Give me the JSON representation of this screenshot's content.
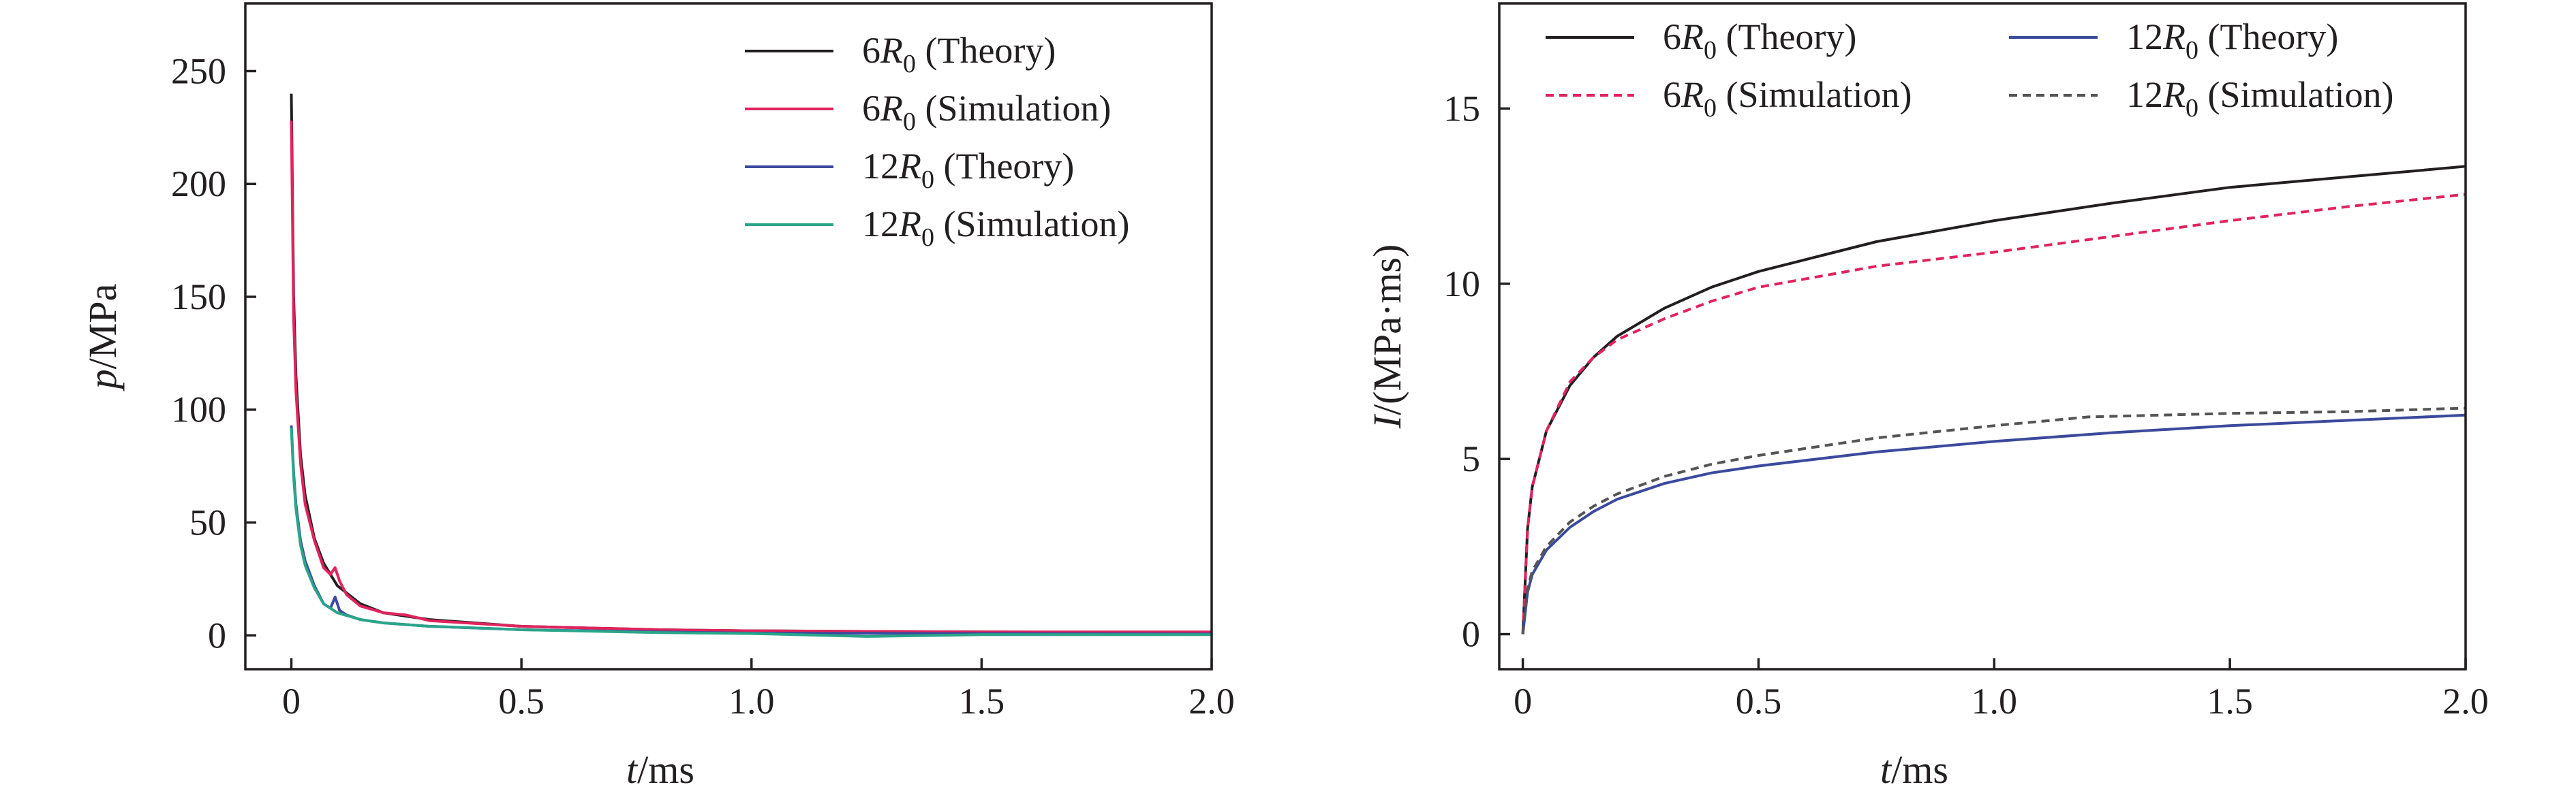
{
  "chart_data": [
    {
      "type": "line",
      "title": "",
      "xlabel": {
        "var": "t",
        "unit": "/ms"
      },
      "ylabel": {
        "var": "p",
        "unit": "/MPa"
      },
      "xlim": [
        -0.1,
        2.0
      ],
      "ylim": [
        -15,
        280
      ],
      "x_ticks": [
        0,
        0.5,
        1.0,
        1.5,
        2.0
      ],
      "x_tick_labels": [
        "0",
        "0.5",
        "1.0",
        "1.5",
        "2.0"
      ],
      "y_ticks": [
        0,
        50,
        100,
        150,
        200,
        250
      ],
      "y_tick_labels": [
        "0",
        "50",
        "100",
        "150",
        "200",
        "250"
      ],
      "grid": false,
      "legend_position": "top-right",
      "series": [
        {
          "name": "6R0 (Theory)",
          "legend": {
            "pre": "6",
            "var": "R",
            "sub": "0",
            "post": " (Theory)"
          },
          "color": "#231f20",
          "dash": "solid",
          "x": [
            0,
            0.005,
            0.01,
            0.02,
            0.03,
            0.05,
            0.07,
            0.1,
            0.15,
            0.2,
            0.3,
            0.5,
            0.8,
            1.0,
            1.5,
            2.0
          ],
          "y": [
            240,
            150,
            115,
            80,
            62,
            43,
            32,
            22,
            14,
            10,
            7,
            4,
            2.5,
            2,
            1.5,
            1.2
          ]
        },
        {
          "name": "6R0 (Simulation)",
          "legend": {
            "pre": "6",
            "var": "R",
            "sub": "0",
            "post": " (Simulation)"
          },
          "color": "#e0245e",
          "dash": "solid",
          "x": [
            0,
            0.005,
            0.01,
            0.02,
            0.03,
            0.05,
            0.07,
            0.085,
            0.095,
            0.105,
            0.12,
            0.15,
            0.2,
            0.25,
            0.3,
            0.5,
            0.8,
            1.0,
            1.5,
            2.0
          ],
          "y": [
            228,
            140,
            108,
            76,
            58,
            42,
            30,
            27,
            30,
            24,
            18,
            13,
            10,
            9,
            6.5,
            4,
            2.5,
            2,
            1.5,
            1.5
          ]
        },
        {
          "name": "12R0 (Theory)",
          "legend": {
            "pre": "12",
            "var": "R",
            "sub": "0",
            "post": " (Theory)"
          },
          "color": "#3b4a9c",
          "dash": "solid",
          "x": [
            0,
            0.005,
            0.01,
            0.02,
            0.03,
            0.05,
            0.07,
            0.085,
            0.095,
            0.105,
            0.12,
            0.15,
            0.2,
            0.3,
            0.5,
            0.8,
            1.0,
            1.5,
            2.0
          ],
          "y": [
            93,
            72,
            58,
            42,
            33,
            22,
            14,
            12,
            17,
            11,
            9,
            7,
            5.5,
            4,
            2.5,
            1.5,
            1,
            0.8,
            0.6
          ]
        },
        {
          "name": "12R0 (Simulation)",
          "legend": {
            "pre": "12",
            "var": "R",
            "sub": "0",
            "post": " (Simulation)"
          },
          "color": "#2aa58a",
          "dash": "solid",
          "x": [
            0,
            0.005,
            0.01,
            0.02,
            0.03,
            0.05,
            0.07,
            0.1,
            0.15,
            0.2,
            0.3,
            0.5,
            0.8,
            1.0,
            1.25,
            1.5,
            2.0
          ],
          "y": [
            92,
            70,
            56,
            40,
            31,
            21,
            14,
            10,
            7,
            5.5,
            4,
            2.5,
            1.2,
            0.8,
            -0.5,
            0.3,
            0.3
          ]
        }
      ]
    },
    {
      "type": "line",
      "title": "",
      "xlabel": {
        "var": "t",
        "unit": "/ms"
      },
      "ylabel": {
        "var": "I",
        "unit": "/(MPa·ms)"
      },
      "xlim": [
        -0.05,
        2.0
      ],
      "ylim": [
        -1,
        18
      ],
      "x_ticks": [
        0,
        0.5,
        1.0,
        1.5,
        2.0
      ],
      "x_tick_labels": [
        "0",
        "0.5",
        "1.0",
        "1.5",
        "2.0"
      ],
      "y_ticks": [
        0,
        5,
        10,
        15
      ],
      "y_tick_labels": [
        "0",
        "5",
        "10",
        "15"
      ],
      "grid": false,
      "legend_position": "top (two columns)",
      "series": [
        {
          "name": "6R0 (Theory)",
          "legend": {
            "pre": "6",
            "var": "R",
            "sub": "0",
            "post": " (Theory)"
          },
          "color": "#231f20",
          "dash": "solid",
          "x": [
            0,
            0.01,
            0.02,
            0.05,
            0.1,
            0.15,
            0.2,
            0.3,
            0.4,
            0.5,
            0.75,
            1.0,
            1.25,
            1.5,
            1.75,
            2.0
          ],
          "y": [
            0,
            3.0,
            4.2,
            5.8,
            7.1,
            7.9,
            8.5,
            9.3,
            9.9,
            10.35,
            11.2,
            11.8,
            12.3,
            12.75,
            13.05,
            13.35
          ]
        },
        {
          "name": "6R0 (Simulation)",
          "legend": {
            "pre": "6",
            "var": "R",
            "sub": "0",
            "post": " (Simulation)"
          },
          "color": "#e0245e",
          "dash": "dashed",
          "x": [
            0,
            0.01,
            0.02,
            0.05,
            0.1,
            0.15,
            0.2,
            0.3,
            0.4,
            0.5,
            0.75,
            1.0,
            1.25,
            1.5,
            1.75,
            2.0
          ],
          "y": [
            0,
            3.0,
            4.2,
            5.8,
            7.2,
            7.9,
            8.4,
            9.0,
            9.5,
            9.9,
            10.5,
            10.9,
            11.35,
            11.8,
            12.2,
            12.55
          ]
        },
        {
          "name": "12R0 (Theory)",
          "legend": {
            "pre": "12",
            "var": "R",
            "sub": "0",
            "post": " (Theory)"
          },
          "color": "#3b4a9c",
          "dash": "solid",
          "x": [
            0,
            0.01,
            0.02,
            0.05,
            0.1,
            0.15,
            0.2,
            0.3,
            0.4,
            0.5,
            0.75,
            1.0,
            1.25,
            1.5,
            1.75,
            2.0
          ],
          "y": [
            0,
            1.2,
            1.7,
            2.4,
            3.05,
            3.5,
            3.85,
            4.3,
            4.6,
            4.8,
            5.2,
            5.5,
            5.75,
            5.95,
            6.1,
            6.25
          ]
        },
        {
          "name": "12R0 (Simulation)",
          "legend": {
            "pre": "12",
            "var": "R",
            "sub": "0",
            "post": " (Simulation)"
          },
          "color": "#555555",
          "dash": "dashed",
          "x": [
            0,
            0.01,
            0.02,
            0.05,
            0.1,
            0.15,
            0.2,
            0.3,
            0.4,
            0.5,
            0.75,
            1.0,
            1.2,
            1.5,
            1.75,
            2.0
          ],
          "y": [
            0,
            1.3,
            1.8,
            2.5,
            3.2,
            3.65,
            4.0,
            4.5,
            4.85,
            5.1,
            5.6,
            5.95,
            6.2,
            6.3,
            6.35,
            6.45
          ]
        }
      ]
    }
  ]
}
